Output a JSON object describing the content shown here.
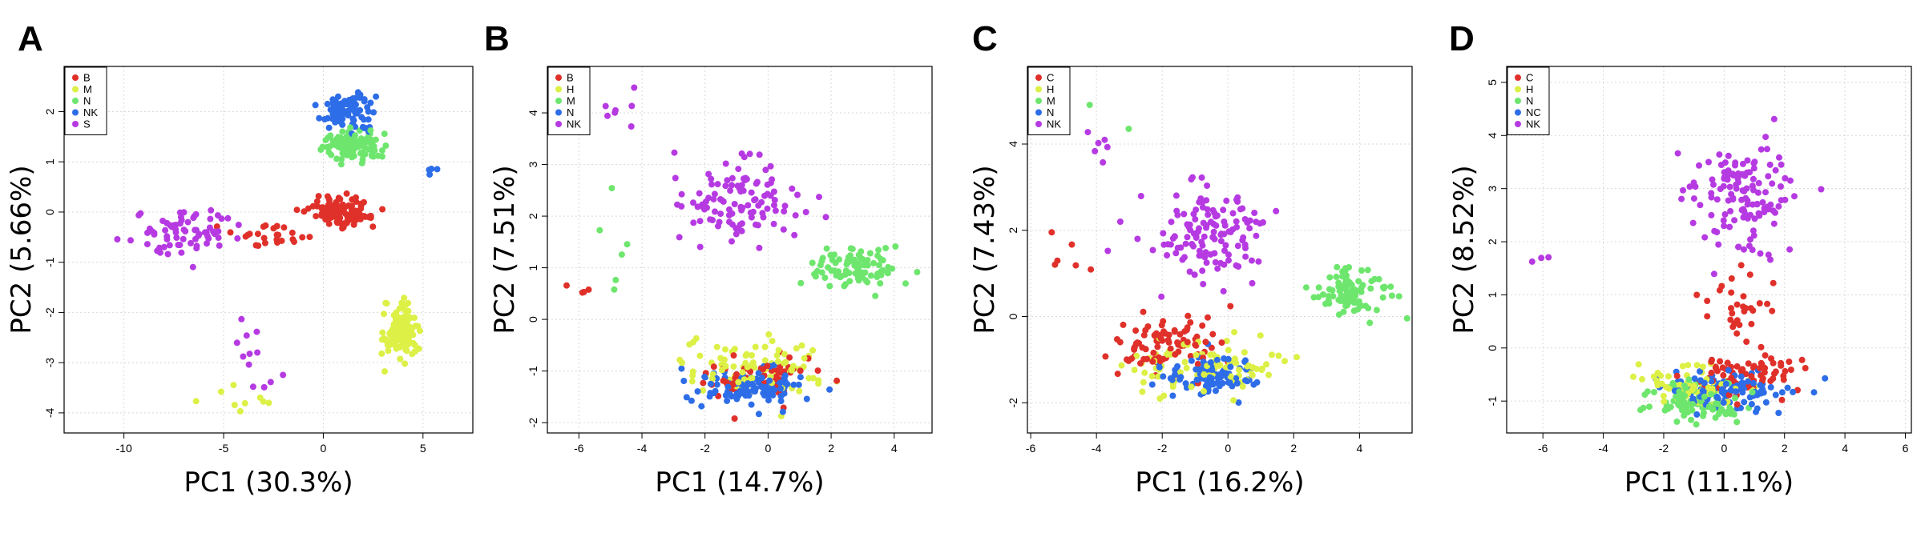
{
  "colors": {
    "red": "#e0302a",
    "yellow": "#dcf046",
    "green": "#6ee66e",
    "blue": "#2e6de8",
    "magenta": "#b63ae2"
  },
  "chart_data": [
    {
      "type": "scatter",
      "panel": "A",
      "xlabel": "PC1 (30.3%)",
      "ylabel": "PC2 (5.66%)",
      "xlim": [
        -13,
        7.5
      ],
      "ylim": [
        -4.4,
        2.9
      ],
      "xticks": [
        -10,
        -5,
        0,
        5
      ],
      "yticks": [
        -4,
        -3,
        -2,
        -1,
        0,
        1,
        2
      ],
      "grid": true,
      "legend_position": "top-left",
      "series": [
        {
          "name": "B",
          "color": "red",
          "clusters": [
            {
              "cx": 0.8,
              "cy": 0.0,
              "sx": 1.3,
              "sy": 0.25,
              "n": 120
            },
            {
              "cx": -2.5,
              "cy": -0.5,
              "sx": 1.5,
              "sy": 0.25,
              "n": 25
            }
          ]
        },
        {
          "name": "M",
          "color": "yellow",
          "clusters": [
            {
              "cx": 3.9,
              "cy": -2.4,
              "sx": 0.7,
              "sy": 0.45,
              "n": 110
            },
            {
              "cx": -4.5,
              "cy": -3.8,
              "sx": 2.2,
              "sy": 0.35,
              "n": 9
            }
          ]
        },
        {
          "name": "N",
          "color": "green",
          "clusters": [
            {
              "cx": 1.5,
              "cy": 1.3,
              "sx": 1.2,
              "sy": 0.25,
              "n": 110
            }
          ]
        },
        {
          "name": "NK",
          "color": "blue",
          "clusters": [
            {
              "cx": 1.2,
              "cy": 2.0,
              "sx": 1.1,
              "sy": 0.3,
              "n": 95
            },
            {
              "cx": 5.5,
              "cy": 0.8,
              "sx": 0.7,
              "sy": 0.15,
              "n": 4
            }
          ]
        },
        {
          "name": "S",
          "color": "magenta",
          "clusters": [
            {
              "cx": -7.0,
              "cy": -0.4,
              "sx": 2.2,
              "sy": 0.45,
              "n": 70
            },
            {
              "cx": -3.5,
              "cy": -3.0,
              "sx": 1.3,
              "sy": 0.8,
              "n": 12
            }
          ]
        }
      ]
    },
    {
      "type": "scatter",
      "panel": "B",
      "xlabel": "PC1 (14.7%)",
      "ylabel": "PC2 (7.51%)",
      "xlim": [
        -7,
        5.2
      ],
      "ylim": [
        -2.2,
        4.9
      ],
      "xticks": [
        -6,
        -4,
        -2,
        0,
        2,
        4
      ],
      "yticks": [
        -2,
        -1,
        0,
        1,
        2,
        3,
        4
      ],
      "grid": true,
      "legend_position": "top-left",
      "series": [
        {
          "name": "B",
          "color": "red",
          "clusters": [
            {
              "cx": -0.5,
              "cy": -1.1,
              "sx": 1.5,
              "sy": 0.35,
              "n": 60
            },
            {
              "cx": -5.8,
              "cy": 0.5,
              "sx": 0.5,
              "sy": 0.2,
              "n": 4
            }
          ]
        },
        {
          "name": "H",
          "color": "yellow",
          "clusters": [
            {
              "cx": -0.5,
              "cy": -0.9,
              "sx": 1.9,
              "sy": 0.45,
              "n": 90
            }
          ]
        },
        {
          "name": "M",
          "color": "green",
          "clusters": [
            {
              "cx": 2.8,
              "cy": 1.0,
              "sx": 1.2,
              "sy": 0.3,
              "n": 90
            },
            {
              "cx": -5.0,
              "cy": 1.8,
              "sx": 1.0,
              "sy": 1.2,
              "n": 6
            }
          ]
        },
        {
          "name": "N",
          "color": "blue",
          "clusters": [
            {
              "cx": -0.5,
              "cy": -1.3,
              "sx": 1.3,
              "sy": 0.3,
              "n": 110
            }
          ]
        },
        {
          "name": "NK",
          "color": "magenta",
          "clusters": [
            {
              "cx": -1.0,
              "cy": 2.3,
              "sx": 1.6,
              "sy": 0.75,
              "n": 110
            },
            {
              "cx": -4.5,
              "cy": 4.1,
              "sx": 0.5,
              "sy": 0.4,
              "n": 7
            }
          ]
        }
      ]
    },
    {
      "type": "scatter",
      "panel": "C",
      "xlabel": "PC1 (16.2%)",
      "ylabel": "PC2 (7.43%)",
      "xlim": [
        -6.1,
        5.6
      ],
      "ylim": [
        -2.7,
        5.8
      ],
      "xticks": [
        -6,
        -4,
        -2,
        0,
        2,
        4
      ],
      "yticks": [
        -2,
        0,
        2,
        4
      ],
      "grid": true,
      "legend_position": "top-left",
      "series": [
        {
          "name": "C",
          "color": "red",
          "clusters": [
            {
              "cx": -1.8,
              "cy": -0.6,
              "sx": 1.3,
              "sy": 0.6,
              "n": 90
            },
            {
              "cx": -4.5,
              "cy": 1.5,
              "sx": 1.0,
              "sy": 0.8,
              "n": 6
            }
          ]
        },
        {
          "name": "H",
          "color": "yellow",
          "clusters": [
            {
              "cx": -0.6,
              "cy": -1.1,
              "sx": 1.9,
              "sy": 0.55,
              "n": 90
            }
          ]
        },
        {
          "name": "M",
          "color": "green",
          "clusters": [
            {
              "cx": 3.8,
              "cy": 0.6,
              "sx": 0.9,
              "sy": 0.45,
              "n": 90
            },
            {
              "cx": -4.5,
              "cy": 4.6,
              "sx": 1.0,
              "sy": 0.5,
              "n": 4
            }
          ]
        },
        {
          "name": "N",
          "color": "blue",
          "clusters": [
            {
              "cx": -0.5,
              "cy": -1.4,
              "sx": 1.2,
              "sy": 0.4,
              "n": 100
            }
          ]
        },
        {
          "name": "NK",
          "color": "magenta",
          "clusters": [
            {
              "cx": -0.5,
              "cy": 1.9,
              "sx": 1.6,
              "sy": 0.85,
              "n": 130
            },
            {
              "cx": -3.8,
              "cy": 3.9,
              "sx": 0.4,
              "sy": 0.6,
              "n": 6
            }
          ]
        }
      ]
    },
    {
      "type": "scatter",
      "panel": "D",
      "xlabel": "PC1 (11.1%)",
      "ylabel": "PC2 (8.52%)",
      "xlim": [
        -7.2,
        6.2
      ],
      "ylim": [
        -1.6,
        5.3
      ],
      "xticks": [
        -6,
        -4,
        -2,
        0,
        2,
        4,
        6
      ],
      "yticks": [
        -1,
        0,
        1,
        2,
        3,
        4,
        5
      ],
      "grid": true,
      "legend_position": "top-left",
      "series": [
        {
          "name": "C",
          "color": "red",
          "clusters": [
            {
              "cx": 0.8,
              "cy": -0.5,
              "sx": 1.3,
              "sy": 0.35,
              "n": 70
            },
            {
              "cx": 0.5,
              "cy": 0.8,
              "sx": 1.3,
              "sy": 0.6,
              "n": 30
            }
          ]
        },
        {
          "name": "H",
          "color": "yellow",
          "clusters": [
            {
              "cx": -1.0,
              "cy": -0.7,
              "sx": 1.8,
              "sy": 0.35,
              "n": 70
            }
          ]
        },
        {
          "name": "N",
          "color": "green",
          "clusters": [
            {
              "cx": -1.0,
              "cy": -1.0,
              "sx": 1.3,
              "sy": 0.25,
              "n": 110
            }
          ]
        },
        {
          "name": "NC",
          "color": "blue",
          "clusters": [
            {
              "cx": 0.2,
              "cy": -0.8,
              "sx": 1.7,
              "sy": 0.3,
              "n": 110
            }
          ]
        },
        {
          "name": "NK",
          "color": "magenta",
          "clusters": [
            {
              "cx": 0.6,
              "cy": 2.8,
              "sx": 1.5,
              "sy": 0.9,
              "n": 130
            },
            {
              "cx": -6.0,
              "cy": 1.7,
              "sx": 0.6,
              "sy": 0.2,
              "n": 3
            }
          ]
        }
      ]
    }
  ]
}
